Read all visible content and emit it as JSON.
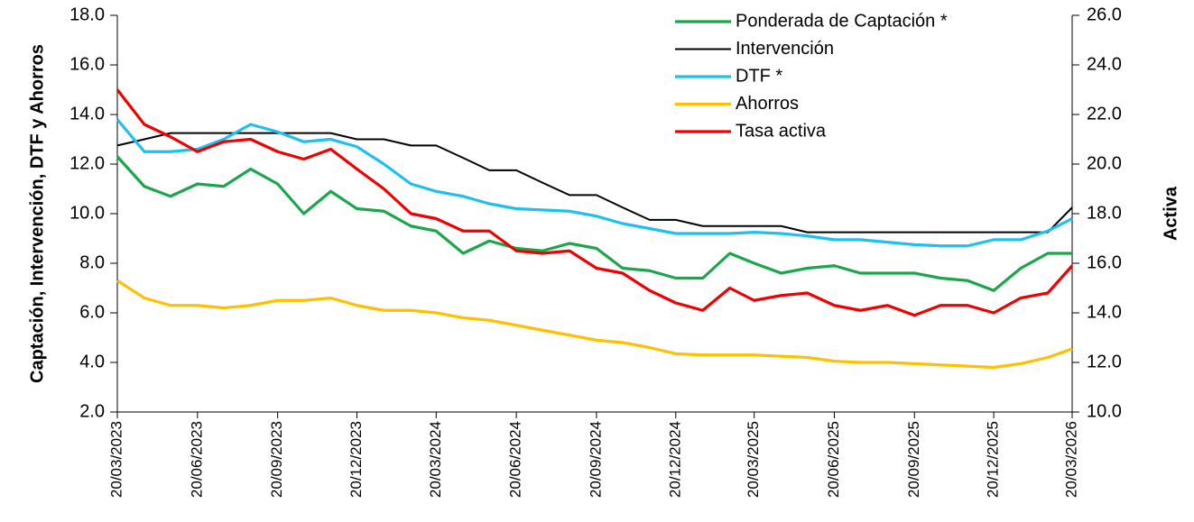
{
  "chart_data": {
    "type": "line",
    "y_label": "Captación, Intervención, DTF y Ahorros",
    "y2_label": "Activa",
    "x": [
      "20/03/2023",
      "20/04/2023",
      "20/05/2023",
      "20/06/2023",
      "20/07/2023",
      "20/08/2023",
      "20/09/2023",
      "20/10/2023",
      "20/11/2023",
      "20/12/2023",
      "20/01/2024",
      "20/02/2024",
      "20/03/2024",
      "20/04/2024",
      "20/05/2024",
      "20/06/2024",
      "20/07/2024",
      "20/08/2024",
      "20/09/2024",
      "20/10/2024",
      "20/11/2024",
      "20/12/2024",
      "20/01/2025",
      "20/02/2025",
      "20/03/2025",
      "20/04/2025",
      "20/05/2025",
      "20/06/2025",
      "20/07/2025",
      "20/08/2025",
      "20/09/2025",
      "20/10/2025",
      "20/11/2025",
      "20/12/2025",
      "20/01/2026",
      "20/02/2026",
      "20/03/2026"
    ],
    "xlim": [
      "20/03/2023",
      "20/03/2026"
    ],
    "xticks": [
      "20/03/2023",
      "20/06/2023",
      "20/09/2023",
      "20/12/2023",
      "20/03/2024",
      "20/06/2024",
      "20/09/2024",
      "20/12/2024",
      "20/03/2025",
      "20/06/2025",
      "20/09/2025",
      "20/12/2025",
      "20/03/2026"
    ],
    "ylim": [
      2,
      18
    ],
    "yticks": [
      {
        "value": 2,
        "label": "2.0"
      },
      {
        "value": 4,
        "label": "4.0"
      },
      {
        "value": 6,
        "label": "6.0"
      },
      {
        "value": 8,
        "label": "8.0"
      },
      {
        "value": 10,
        "label": "10.0"
      },
      {
        "value": 12,
        "label": "12.0"
      },
      {
        "value": 14,
        "label": "14.0"
      },
      {
        "value": 16,
        "label": "16.0"
      },
      {
        "value": 18,
        "label": "18.0"
      }
    ],
    "y2lim": [
      10,
      26
    ],
    "y2ticks": [
      {
        "value": 10,
        "label": "10.0"
      },
      {
        "value": 12,
        "label": "12.0"
      },
      {
        "value": 14,
        "label": "14.0"
      },
      {
        "value": 16,
        "label": "16.0"
      },
      {
        "value": 18,
        "label": "18.0"
      },
      {
        "value": 20,
        "label": "20.0"
      },
      {
        "value": 22,
        "label": "22.0"
      },
      {
        "value": 24,
        "label": "24.0"
      },
      {
        "value": 26,
        "label": "26.0"
      }
    ],
    "legend": "upper right",
    "series": [
      {
        "name": "Ponderada de Captación *",
        "color": "#1aa64a",
        "values": [
          12.3,
          11.1,
          10.7,
          11.2,
          11.1,
          11.8,
          11.2,
          10.0,
          10.9,
          10.2,
          10.1,
          9.5,
          9.3,
          8.4,
          8.9,
          8.6,
          8.5,
          8.8,
          8.6,
          7.8,
          7.7,
          7.4,
          7.4,
          8.4,
          8.0,
          7.6,
          7.8,
          7.9,
          7.6,
          7.6,
          7.6,
          7.4,
          7.3,
          6.9,
          7.8,
          8.4,
          8.4
        ]
      },
      {
        "name": "Intervención",
        "color": "#000000",
        "values": [
          12.75,
          13.0,
          13.25,
          13.25,
          13.25,
          13.25,
          13.25,
          13.25,
          13.25,
          13.0,
          13.0,
          12.75,
          12.75,
          12.25,
          11.75,
          11.75,
          11.25,
          10.75,
          10.75,
          10.25,
          9.75,
          9.75,
          9.5,
          9.5,
          9.5,
          9.5,
          9.25,
          9.25,
          9.25,
          9.25,
          9.25,
          9.25,
          9.25,
          9.25,
          9.25,
          9.25,
          10.25
        ]
      },
      {
        "name": "DTF *",
        "color": "#1ec0f0",
        "values": [
          13.8,
          12.5,
          12.5,
          12.6,
          13.0,
          13.6,
          13.3,
          12.9,
          13.0,
          12.7,
          12.0,
          11.2,
          10.9,
          10.7,
          10.4,
          10.2,
          10.15,
          10.1,
          9.9,
          9.6,
          9.4,
          9.2,
          9.2,
          9.2,
          9.25,
          9.2,
          9.1,
          8.95,
          8.95,
          8.85,
          8.75,
          8.7,
          8.7,
          8.95,
          8.95,
          9.3,
          9.8
        ]
      },
      {
        "name": "Ahorros",
        "color": "#ffc000",
        "values": [
          7.3,
          6.6,
          6.3,
          6.3,
          6.2,
          6.3,
          6.5,
          6.5,
          6.6,
          6.3,
          6.1,
          6.1,
          6.0,
          5.8,
          5.7,
          5.5,
          5.3,
          5.1,
          4.9,
          4.8,
          4.6,
          4.35,
          4.3,
          4.3,
          4.3,
          4.25,
          4.2,
          4.05,
          4.0,
          4.0,
          3.95,
          3.9,
          3.85,
          3.8,
          3.95,
          4.2,
          4.55
        ]
      },
      {
        "name": "Tasa activa",
        "color": "#f00000",
        "axis": "y2",
        "values": [
          23.0,
          21.6,
          21.1,
          20.5,
          20.9,
          21.0,
          20.5,
          20.2,
          20.6,
          19.8,
          19.0,
          18.0,
          17.8,
          17.3,
          17.3,
          16.5,
          16.4,
          16.5,
          15.8,
          15.6,
          14.9,
          14.4,
          14.1,
          15.0,
          14.5,
          14.7,
          14.8,
          14.3,
          14.1,
          14.3,
          13.9,
          14.3,
          14.3,
          14.0,
          14.6,
          14.8,
          15.9
        ]
      }
    ]
  }
}
